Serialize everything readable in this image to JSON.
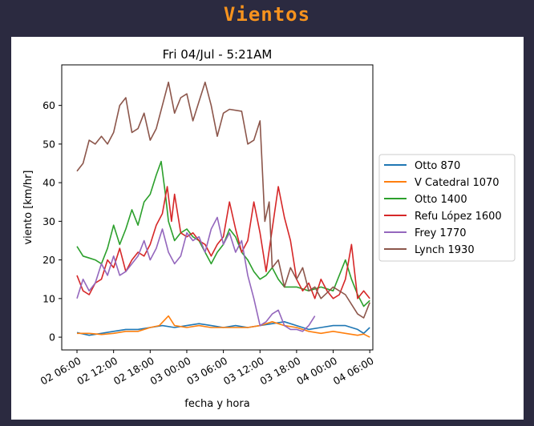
{
  "page": {
    "title": "Vientos",
    "colors": {
      "background": "#2b2a40",
      "title": "#f7931e"
    }
  },
  "chart_data": {
    "type": "line",
    "title": "Fri 04/Jul - 5:21AM",
    "xlabel": "fecha y hora",
    "ylabel": "viento [km/hr]",
    "x_ticks": [
      {
        "label": "02 06:00",
        "h": 0
      },
      {
        "label": "02 12:00",
        "h": 6
      },
      {
        "label": "02 18:00",
        "h": 12
      },
      {
        "label": "03 00:00",
        "h": 18
      },
      {
        "label": "03 06:00",
        "h": 24
      },
      {
        "label": "03 12:00",
        "h": 30
      },
      {
        "label": "03 18:00",
        "h": 36
      },
      {
        "label": "04 00:00",
        "h": 42
      },
      {
        "label": "04 06:00",
        "h": 48
      }
    ],
    "x_unit": "hours since 02 06:00",
    "xlim": [
      -2.5,
      48.5
    ],
    "yticks": [
      0,
      10,
      20,
      30,
      40,
      50,
      60
    ],
    "ylim": [
      -3.3,
      70.5
    ],
    "legend_position": "center-right",
    "series": [
      {
        "name": "Otto 870",
        "color": "#1f77b4",
        "points": [
          [
            0,
            1.2
          ],
          [
            2,
            0.5
          ],
          [
            4,
            1
          ],
          [
            6,
            1.5
          ],
          [
            8,
            2
          ],
          [
            10,
            2
          ],
          [
            12,
            2.5
          ],
          [
            14,
            3
          ],
          [
            16,
            2.5
          ],
          [
            18,
            3
          ],
          [
            20,
            3.5
          ],
          [
            22,
            3
          ],
          [
            24,
            2.5
          ],
          [
            26,
            3
          ],
          [
            28,
            2.5
          ],
          [
            30,
            3
          ],
          [
            32,
            3.5
          ],
          [
            34,
            4
          ],
          [
            36,
            3
          ],
          [
            38,
            2
          ],
          [
            40,
            2.5
          ],
          [
            42,
            3
          ],
          [
            44,
            3
          ],
          [
            46,
            2
          ],
          [
            47,
            1
          ],
          [
            48,
            2.5
          ]
        ]
      },
      {
        "name": "V Catedral 1070",
        "color": "#ff7f0e",
        "points": [
          [
            0,
            1
          ],
          [
            2,
            1
          ],
          [
            4,
            0.7
          ],
          [
            6,
            1
          ],
          [
            8,
            1.5
          ],
          [
            10,
            1.5
          ],
          [
            12,
            2.5
          ],
          [
            13.5,
            3
          ],
          [
            15,
            5.5
          ],
          [
            16,
            3
          ],
          [
            18,
            2.5
          ],
          [
            20,
            3
          ],
          [
            22,
            2.5
          ],
          [
            24,
            2.5
          ],
          [
            26,
            2.5
          ],
          [
            28,
            2.5
          ],
          [
            30,
            3
          ],
          [
            32,
            4
          ],
          [
            34,
            3
          ],
          [
            36,
            2.5
          ],
          [
            38,
            1.5
          ],
          [
            40,
            1
          ],
          [
            42,
            1.5
          ],
          [
            44,
            1
          ],
          [
            46,
            0.5
          ],
          [
            47,
            0.8
          ],
          [
            48,
            0
          ]
        ]
      },
      {
        "name": "Otto 1400",
        "color": "#2ca02c",
        "points": [
          [
            0,
            23.5
          ],
          [
            1,
            21
          ],
          [
            2,
            20.5
          ],
          [
            3,
            20
          ],
          [
            4,
            19
          ],
          [
            5,
            23
          ],
          [
            6,
            29
          ],
          [
            7,
            24
          ],
          [
            8,
            28
          ],
          [
            9,
            33
          ],
          [
            10,
            29
          ],
          [
            11,
            35
          ],
          [
            12,
            37
          ],
          [
            13,
            42
          ],
          [
            13.8,
            45.5
          ],
          [
            14.5,
            37
          ],
          [
            15,
            30
          ],
          [
            16,
            25
          ],
          [
            17,
            27
          ],
          [
            18,
            28
          ],
          [
            19,
            26
          ],
          [
            20,
            25
          ],
          [
            21,
            22
          ],
          [
            22,
            19
          ],
          [
            23,
            22
          ],
          [
            24,
            24
          ],
          [
            25,
            28
          ],
          [
            26,
            26
          ],
          [
            27,
            22
          ],
          [
            28,
            20
          ],
          [
            29,
            17
          ],
          [
            30,
            15
          ],
          [
            31,
            16
          ],
          [
            32,
            18
          ],
          [
            33,
            15
          ],
          [
            34,
            13
          ],
          [
            36,
            13
          ],
          [
            38,
            12
          ],
          [
            40,
            13
          ],
          [
            42,
            12
          ],
          [
            44,
            20
          ],
          [
            45,
            15
          ],
          [
            46,
            11
          ],
          [
            47,
            8
          ],
          [
            48,
            9.5
          ]
        ]
      },
      {
        "name": "Refu López 1600",
        "color": "#d62728",
        "points": [
          [
            0,
            16
          ],
          [
            1,
            12
          ],
          [
            2,
            11
          ],
          [
            3,
            14
          ],
          [
            4,
            15
          ],
          [
            5,
            20
          ],
          [
            6,
            18
          ],
          [
            7,
            23
          ],
          [
            8,
            17
          ],
          [
            9,
            20
          ],
          [
            10,
            22
          ],
          [
            11,
            21
          ],
          [
            12,
            24
          ],
          [
            13,
            29
          ],
          [
            14,
            32
          ],
          [
            14.8,
            39
          ],
          [
            15.5,
            30
          ],
          [
            16,
            37
          ],
          [
            17,
            27
          ],
          [
            18,
            26
          ],
          [
            19,
            27
          ],
          [
            20,
            25
          ],
          [
            21,
            24
          ],
          [
            22,
            21
          ],
          [
            23,
            24
          ],
          [
            24,
            26
          ],
          [
            25,
            35
          ],
          [
            26,
            28
          ],
          [
            27,
            22
          ],
          [
            28,
            25
          ],
          [
            29,
            35
          ],
          [
            30,
            27
          ],
          [
            31,
            17
          ],
          [
            32,
            28
          ],
          [
            33,
            39
          ],
          [
            34,
            31
          ],
          [
            35,
            25
          ],
          [
            36,
            15
          ],
          [
            37,
            12
          ],
          [
            38,
            14
          ],
          [
            39,
            10
          ],
          [
            40,
            15
          ],
          [
            41,
            12
          ],
          [
            42,
            10
          ],
          [
            43,
            11
          ],
          [
            44,
            15
          ],
          [
            45,
            24
          ],
          [
            46,
            10
          ],
          [
            47,
            12
          ],
          [
            48,
            10
          ]
        ]
      },
      {
        "name": "Frey 1770",
        "color": "#9467bd",
        "points": [
          [
            0,
            10
          ],
          [
            1,
            15
          ],
          [
            2,
            12
          ],
          [
            3,
            14
          ],
          [
            4,
            19
          ],
          [
            5,
            16
          ],
          [
            6,
            21
          ],
          [
            7,
            16
          ],
          [
            8,
            17
          ],
          [
            9,
            19
          ],
          [
            10,
            21
          ],
          [
            11,
            25
          ],
          [
            12,
            20
          ],
          [
            13,
            23
          ],
          [
            14,
            28
          ],
          [
            15,
            22
          ],
          [
            16,
            19
          ],
          [
            17,
            21
          ],
          [
            18,
            27
          ],
          [
            19,
            25
          ],
          [
            20,
            26
          ],
          [
            21,
            22
          ],
          [
            22,
            28
          ],
          [
            23,
            31
          ],
          [
            24,
            24
          ],
          [
            25,
            27
          ],
          [
            26,
            22
          ],
          [
            27,
            25
          ],
          [
            28,
            16
          ],
          [
            29,
            10
          ],
          [
            30,
            3
          ],
          [
            31,
            4
          ],
          [
            32,
            6
          ],
          [
            33,
            7
          ],
          [
            34,
            3
          ],
          [
            35,
            2
          ],
          [
            36,
            2
          ],
          [
            37,
            1.5
          ],
          [
            38,
            3
          ],
          [
            39,
            5.5
          ]
        ]
      },
      {
        "name": "Lynch 1930",
        "color": "#8c564b",
        "points": [
          [
            0,
            43
          ],
          [
            1,
            45
          ],
          [
            2,
            51
          ],
          [
            3,
            50
          ],
          [
            4,
            52
          ],
          [
            5,
            50
          ],
          [
            6,
            53
          ],
          [
            7,
            60
          ],
          [
            8,
            62
          ],
          [
            9,
            53
          ],
          [
            10,
            54
          ],
          [
            11,
            58
          ],
          [
            12,
            51
          ],
          [
            13,
            54
          ],
          [
            14,
            60
          ],
          [
            15,
            66
          ],
          [
            16,
            58
          ],
          [
            17,
            62
          ],
          [
            18,
            63
          ],
          [
            19,
            56
          ],
          [
            20,
            61
          ],
          [
            21,
            66
          ],
          [
            22,
            60
          ],
          [
            23,
            52
          ],
          [
            24,
            58
          ],
          [
            25,
            59
          ],
          [
            27,
            58.5
          ],
          [
            28,
            50
          ],
          [
            29,
            51
          ],
          [
            30,
            56
          ],
          [
            30.8,
            30
          ],
          [
            31.5,
            35
          ],
          [
            32,
            18
          ],
          [
            33,
            20
          ],
          [
            34,
            13
          ],
          [
            35,
            18
          ],
          [
            36,
            15
          ],
          [
            37,
            18
          ],
          [
            38,
            12
          ],
          [
            39,
            13
          ],
          [
            40,
            10
          ],
          [
            42,
            13
          ],
          [
            44,
            11
          ],
          [
            46,
            6
          ],
          [
            47,
            5
          ],
          [
            48,
            9
          ]
        ]
      }
    ]
  }
}
